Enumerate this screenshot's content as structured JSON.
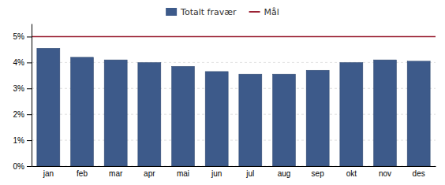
{
  "chart_data": {
    "type": "bar",
    "categories": [
      "jan",
      "feb",
      "mar",
      "apr",
      "mai",
      "jun",
      "jul",
      "aug",
      "sep",
      "okt",
      "nov",
      "des"
    ],
    "series": [
      {
        "name": "Totalt fravær",
        "color": "#3D5A8A",
        "values": [
          4.55,
          4.2,
          4.1,
          4.0,
          3.85,
          3.65,
          3.55,
          3.55,
          3.7,
          4.0,
          4.1,
          4.05
        ]
      }
    ],
    "lines": [
      {
        "name": "Mål",
        "value": 5.0,
        "color": "#9B2335"
      }
    ],
    "ylim": [
      0,
      5.5
    ],
    "yticks": [
      {
        "value": 0.0,
        "label": "0%"
      },
      {
        "value": 1.0,
        "label": "1%"
      },
      {
        "value": 2.0,
        "label": "2%"
      },
      {
        "value": 3.0,
        "label": "3%"
      },
      {
        "value": 4.0,
        "label": "4%"
      },
      {
        "value": 5.0,
        "label": "5%"
      }
    ],
    "grid": true,
    "legend": "top"
  }
}
